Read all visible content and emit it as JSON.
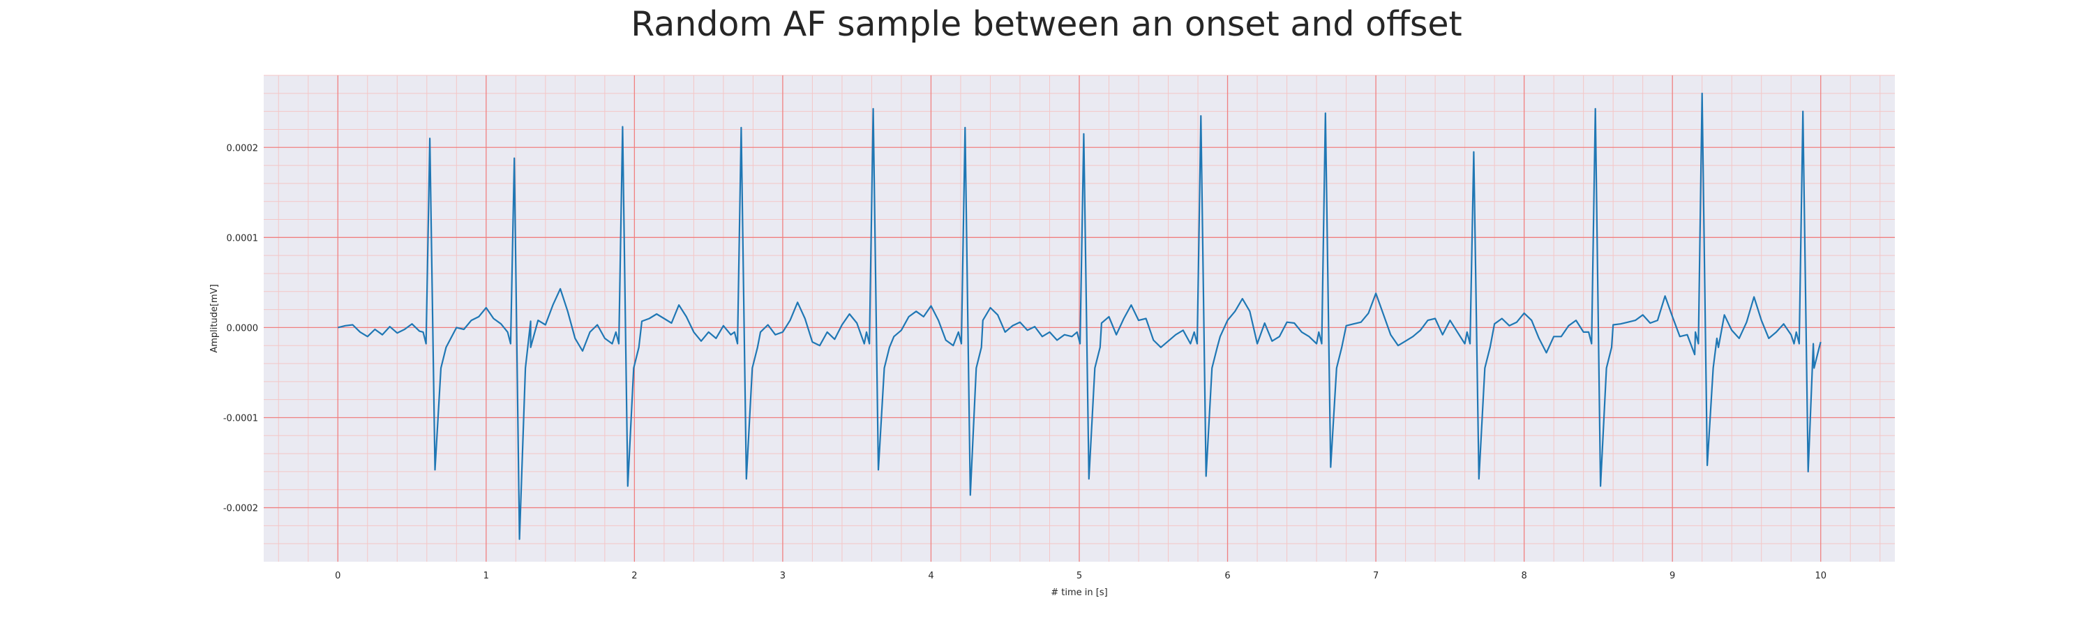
{
  "chart_data": {
    "type": "line",
    "title": "Random AF sample between an onset and offset",
    "xlabel": "# time in [s]",
    "ylabel": "Amplitude[mV]",
    "xlim": [
      -0.5,
      10.5
    ],
    "ylim": [
      -0.00026,
      0.00028
    ],
    "x_ticks": [
      0,
      1,
      2,
      3,
      4,
      5,
      6,
      7,
      8,
      9,
      10
    ],
    "x_tick_labels": [
      "0",
      "1",
      "2",
      "3",
      "4",
      "5",
      "6",
      "7",
      "8",
      "9",
      "10"
    ],
    "y_ticks": [
      -0.0002,
      -0.0001,
      0.0,
      0.0001,
      0.0002
    ],
    "y_tick_labels": [
      "-0.0002",
      "-0.0001",
      "0.0000",
      "0.0001",
      "0.0002"
    ],
    "grid": true,
    "minor_grid": true,
    "colors": {
      "plot_background": "#eaeaf2",
      "major_grid": "#f08080",
      "minor_grid": "#f4c6c6",
      "line": "#1f77b4"
    },
    "series": [
      {
        "beats": [
          {
            "t": 0.62,
            "peak": 0.00021,
            "trough": -0.000158
          },
          {
            "t": 1.19,
            "peak": 0.000188,
            "trough": -0.000235
          },
          {
            "t": 1.92,
            "peak": 0.000223,
            "trough": -0.000176
          },
          {
            "t": 2.72,
            "peak": 0.000222,
            "trough": -0.000168
          },
          {
            "t": 3.61,
            "peak": 0.000243,
            "trough": -0.000158
          },
          {
            "t": 4.23,
            "peak": 0.000222,
            "trough": -0.000186
          },
          {
            "t": 5.03,
            "peak": 0.000215,
            "trough": -0.000168
          },
          {
            "t": 5.82,
            "peak": 0.000235,
            "trough": -0.000165
          },
          {
            "t": 6.66,
            "peak": 0.000238,
            "trough": -0.000155
          },
          {
            "t": 7.66,
            "peak": 0.000195,
            "trough": -0.000168
          },
          {
            "t": 8.48,
            "peak": 0.000243,
            "trough": -0.000176
          },
          {
            "t": 9.2,
            "peak": 0.00026,
            "trough": -0.000153
          },
          {
            "t": 9.88,
            "peak": 0.00024,
            "trough": -0.00016
          }
        ],
        "baseline_points": [
          [
            0.0,
            0.0
          ],
          [
            0.05,
            2e-06
          ],
          [
            0.1,
            3e-06
          ],
          [
            0.15,
            -5e-06
          ],
          [
            0.2,
            -1e-05
          ],
          [
            0.25,
            -2e-06
          ],
          [
            0.3,
            -8e-06
          ],
          [
            0.35,
            1e-06
          ],
          [
            0.4,
            -6e-06
          ],
          [
            0.45,
            -2e-06
          ],
          [
            0.5,
            4e-06
          ],
          [
            0.55,
            -4e-06
          ],
          [
            0.8,
            0.0
          ],
          [
            0.85,
            -2e-06
          ],
          [
            0.9,
            8e-06
          ],
          [
            0.95,
            1.2e-05
          ],
          [
            1.0,
            2.2e-05
          ],
          [
            1.05,
            1e-05
          ],
          [
            1.1,
            4e-06
          ],
          [
            1.3,
            7e-06
          ],
          [
            1.35,
            8e-06
          ],
          [
            1.4,
            3e-06
          ],
          [
            1.45,
            2.5e-05
          ],
          [
            1.5,
            4.3e-05
          ],
          [
            1.55,
            1.8e-05
          ],
          [
            1.6,
            -1.2e-05
          ],
          [
            1.65,
            -2.6e-05
          ],
          [
            1.7,
            -5e-06
          ],
          [
            1.75,
            3e-06
          ],
          [
            1.8,
            -1.2e-05
          ],
          [
            1.85,
            -1.8e-05
          ],
          [
            2.05,
            7e-06
          ],
          [
            2.1,
            1e-05
          ],
          [
            2.15,
            1.5e-05
          ],
          [
            2.2,
            1e-05
          ],
          [
            2.25,
            5e-06
          ],
          [
            2.3,
            2.5e-05
          ],
          [
            2.35,
            1.2e-05
          ],
          [
            2.4,
            -5e-06
          ],
          [
            2.45,
            -1.5e-05
          ],
          [
            2.5,
            -5e-06
          ],
          [
            2.55,
            -1.2e-05
          ],
          [
            2.6,
            2e-06
          ],
          [
            2.65,
            -8e-06
          ],
          [
            2.85,
            -5e-06
          ],
          [
            2.9,
            3e-06
          ],
          [
            2.95,
            -8e-06
          ],
          [
            3.0,
            -5e-06
          ],
          [
            3.05,
            8e-06
          ],
          [
            3.1,
            2.8e-05
          ],
          [
            3.15,
            1e-05
          ],
          [
            3.2,
            -1.6e-05
          ],
          [
            3.25,
            -2e-05
          ],
          [
            3.3,
            -5e-06
          ],
          [
            3.35,
            -1.3e-05
          ],
          [
            3.4,
            3e-06
          ],
          [
            3.45,
            1.5e-05
          ],
          [
            3.5,
            5e-06
          ],
          [
            3.55,
            -1.8e-05
          ],
          [
            3.75,
            -1e-05
          ],
          [
            3.8,
            -3e-06
          ],
          [
            3.85,
            1.2e-05
          ],
          [
            3.9,
            1.8e-05
          ],
          [
            3.95,
            1.2e-05
          ],
          [
            4.0,
            2.4e-05
          ],
          [
            4.05,
            8e-06
          ],
          [
            4.1,
            -1.4e-05
          ],
          [
            4.15,
            -2e-05
          ],
          [
            4.35,
            8e-06
          ],
          [
            4.4,
            2.2e-05
          ],
          [
            4.45,
            1.4e-05
          ],
          [
            4.5,
            -5e-06
          ],
          [
            4.55,
            2e-06
          ],
          [
            4.6,
            6e-06
          ],
          [
            4.65,
            -3e-06
          ],
          [
            4.7,
            1e-06
          ],
          [
            4.75,
            -1e-05
          ],
          [
            4.8,
            -5e-06
          ],
          [
            4.85,
            -1.4e-05
          ],
          [
            4.9,
            -8e-06
          ],
          [
            4.95,
            -1e-05
          ],
          [
            5.15,
            5e-06
          ],
          [
            5.2,
            1.2e-05
          ],
          [
            5.25,
            -8e-06
          ],
          [
            5.3,
            1e-05
          ],
          [
            5.35,
            2.5e-05
          ],
          [
            5.4,
            8e-06
          ],
          [
            5.45,
            1e-05
          ],
          [
            5.5,
            -1.4e-05
          ],
          [
            5.55,
            -2.2e-05
          ],
          [
            5.6,
            -1.5e-05
          ],
          [
            5.65,
            -8e-06
          ],
          [
            5.7,
            -3e-06
          ],
          [
            5.75,
            -1.8e-05
          ],
          [
            5.95,
            -1e-05
          ],
          [
            6.0,
            8e-06
          ],
          [
            6.05,
            1.8e-05
          ],
          [
            6.1,
            3.2e-05
          ],
          [
            6.15,
            1.8e-05
          ],
          [
            6.2,
            -1.8e-05
          ],
          [
            6.25,
            5e-06
          ],
          [
            6.3,
            -1.5e-05
          ],
          [
            6.35,
            -1e-05
          ],
          [
            6.4,
            6e-06
          ],
          [
            6.45,
            5e-06
          ],
          [
            6.5,
            -5e-06
          ],
          [
            6.55,
            -1e-05
          ],
          [
            6.6,
            -1.8e-05
          ],
          [
            6.8,
            2e-06
          ],
          [
            6.85,
            4e-06
          ],
          [
            6.9,
            6e-06
          ],
          [
            6.95,
            1.6e-05
          ],
          [
            7.0,
            3.8e-05
          ],
          [
            7.05,
            1.5e-05
          ],
          [
            7.1,
            -8e-06
          ],
          [
            7.15,
            -2e-05
          ],
          [
            7.2,
            -1.5e-05
          ],
          [
            7.25,
            -1e-05
          ],
          [
            7.3,
            -3e-06
          ],
          [
            7.35,
            8e-06
          ],
          [
            7.4,
            1e-05
          ],
          [
            7.45,
            -8e-06
          ],
          [
            7.5,
            8e-06
          ],
          [
            7.55,
            -5e-06
          ],
          [
            7.6,
            -1.8e-05
          ],
          [
            7.8,
            4e-06
          ],
          [
            7.85,
            1e-05
          ],
          [
            7.9,
            2e-06
          ],
          [
            7.95,
            6e-06
          ],
          [
            8.0,
            1.6e-05
          ],
          [
            8.05,
            8e-06
          ],
          [
            8.1,
            -1.2e-05
          ],
          [
            8.15,
            -2.8e-05
          ],
          [
            8.2,
            -1e-05
          ],
          [
            8.25,
            -1e-05
          ],
          [
            8.3,
            2e-06
          ],
          [
            8.35,
            8e-06
          ],
          [
            8.4,
            -5e-06
          ],
          [
            8.6,
            3e-06
          ],
          [
            8.65,
            4e-06
          ],
          [
            8.7,
            6e-06
          ],
          [
            8.75,
            8e-06
          ],
          [
            8.8,
            1.4e-05
          ],
          [
            8.85,
            5e-06
          ],
          [
            8.9,
            8e-06
          ],
          [
            8.95,
            3.5e-05
          ],
          [
            9.0,
            1.2e-05
          ],
          [
            9.05,
            -1e-05
          ],
          [
            9.1,
            -8e-06
          ],
          [
            9.15,
            -3e-05
          ],
          [
            9.3,
            -1.2e-05
          ],
          [
            9.35,
            1.4e-05
          ],
          [
            9.4,
            -3e-06
          ],
          [
            9.45,
            -1.2e-05
          ],
          [
            9.5,
            6e-06
          ],
          [
            9.55,
            3.4e-05
          ],
          [
            9.6,
            8e-06
          ],
          [
            9.65,
            -1.2e-05
          ],
          [
            9.7,
            -5e-06
          ],
          [
            9.75,
            4e-06
          ],
          [
            9.8,
            -8e-06
          ],
          [
            9.82,
            -1.8e-05
          ],
          [
            9.95,
            -1.8e-05
          ],
          [
            10.0,
            -1.6e-05
          ]
        ]
      }
    ]
  }
}
